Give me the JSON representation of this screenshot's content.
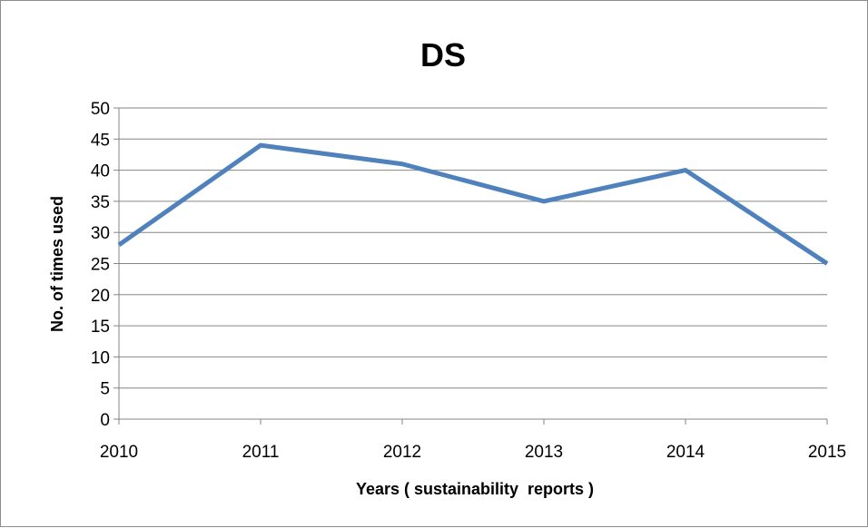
{
  "chart_data": {
    "type": "line",
    "title": "DS",
    "xlabel": "Years ( sustainability  reports )",
    "ylabel": "No. of times used",
    "categories": [
      "2010",
      "2011",
      "2012",
      "2013",
      "2014",
      "2015"
    ],
    "series": [
      {
        "values": [
          28,
          44,
          41,
          35,
          40,
          25
        ],
        "color": "#4f81bd"
      }
    ],
    "ylim": [
      0,
      50
    ],
    "yticks": [
      0,
      5,
      10,
      15,
      20,
      25,
      30,
      35,
      40,
      45,
      50
    ],
    "grid": true,
    "legend": "none"
  }
}
